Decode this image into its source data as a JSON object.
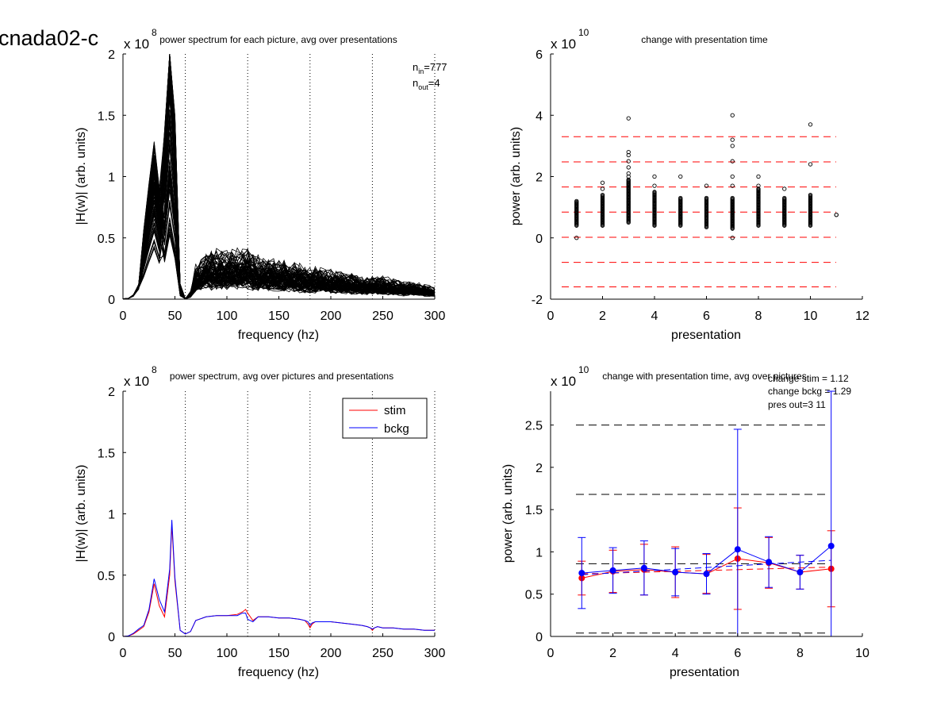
{
  "figure_title": "cnada02-c",
  "chart_data": [
    {
      "id": "tl",
      "type": "line",
      "title": "power spectrum for each picture, avg over presentations",
      "xlabel": "frequency (hz)",
      "ylabel": "|H(w)| (arb. units)",
      "exponent": "x 10",
      "exponent_power": "8",
      "xlim": [
        0,
        300
      ],
      "ylim": [
        0,
        2
      ],
      "xticks": [
        0,
        50,
        100,
        150,
        200,
        250,
        300
      ],
      "yticks": [
        0,
        0.5,
        1,
        1.5,
        2
      ],
      "harmonic_lines": [
        60,
        120,
        180,
        240,
        300
      ],
      "annotations": [
        {
          "main": "n",
          "sub": "in",
          "rest": "=777"
        },
        {
          "main": "n",
          "sub": "out",
          "rest": "=4"
        }
      ],
      "series_count": 777,
      "series_drawn": 90,
      "mean_profile": {
        "x": [
          0,
          5,
          10,
          15,
          20,
          25,
          30,
          35,
          40,
          45,
          48,
          52,
          55,
          58,
          60,
          65,
          70,
          80,
          90,
          100,
          110,
          120,
          130,
          140,
          150,
          160,
          170,
          180,
          190,
          200,
          210,
          220,
          230,
          240,
          250,
          260,
          270,
          280,
          290,
          300
        ],
        "y": [
          0.003,
          0.005,
          0.03,
          0.1,
          0.3,
          0.5,
          0.68,
          0.48,
          0.55,
          0.95,
          0.9,
          0.3,
          0.05,
          0.01,
          0.003,
          0.03,
          0.12,
          0.16,
          0.17,
          0.17,
          0.17,
          0.18,
          0.15,
          0.14,
          0.14,
          0.13,
          0.12,
          0.11,
          0.11,
          0.1,
          0.1,
          0.09,
          0.08,
          0.08,
          0.08,
          0.07,
          0.06,
          0.06,
          0.05,
          0.04
        ]
      },
      "curve_color": "#000000"
    },
    {
      "id": "tr",
      "type": "scatter",
      "title": "change with presentation time",
      "xlabel": "presentation",
      "ylabel": "power (arb. units)",
      "exponent": "x 10",
      "exponent_power": "10",
      "xlim": [
        0,
        12
      ],
      "ylim": [
        -2,
        6
      ],
      "xticks": [
        0,
        2,
        4,
        6,
        8,
        10,
        12
      ],
      "yticks": [
        -2,
        0,
        2,
        4,
        6
      ],
      "hlines": [
        -1.6,
        -0.8,
        0.02,
        0.84,
        1.66,
        2.48,
        3.3
      ],
      "hline_color": "#ff0000",
      "columns": [
        {
          "x": 1,
          "lo": 0.4,
          "hi": 1.2,
          "outliers": [
            0.0
          ]
        },
        {
          "x": 2,
          "lo": 0.4,
          "hi": 1.4,
          "outliers": [
            1.6,
            1.8
          ]
        },
        {
          "x": 3,
          "lo": 0.5,
          "hi": 1.9,
          "outliers": [
            2.0,
            2.1,
            2.3,
            2.5,
            2.7,
            2.8,
            3.9
          ]
        },
        {
          "x": 4,
          "lo": 0.4,
          "hi": 1.5,
          "outliers": [
            1.7,
            2.0
          ]
        },
        {
          "x": 5,
          "lo": 0.4,
          "hi": 1.3,
          "outliers": [
            2.0
          ]
        },
        {
          "x": 6,
          "lo": 0.35,
          "hi": 1.3,
          "outliers": [
            1.7
          ]
        },
        {
          "x": 7,
          "lo": 0.3,
          "hi": 1.3,
          "outliers": [
            0.0,
            1.7,
            2.0,
            2.5,
            3.0,
            3.2,
            4.0
          ]
        },
        {
          "x": 8,
          "lo": 0.4,
          "hi": 1.6,
          "outliers": [
            1.7,
            2.0
          ]
        },
        {
          "x": 9,
          "lo": 0.4,
          "hi": 1.3,
          "outliers": [
            1.6
          ]
        },
        {
          "x": 10,
          "lo": 0.4,
          "hi": 1.4,
          "outliers": [
            2.4,
            3.7
          ]
        },
        {
          "x": 11,
          "lo": 0.75,
          "hi": 0.75,
          "outliers": []
        }
      ]
    },
    {
      "id": "bl",
      "type": "line",
      "title": "power spectrum, avg over pictures and presentations",
      "xlabel": "frequency (hz)",
      "ylabel": "|H(w)| (arb. units)",
      "exponent": "x 10",
      "exponent_power": "8",
      "xlim": [
        0,
        300
      ],
      "ylim": [
        0,
        2
      ],
      "xticks": [
        0,
        50,
        100,
        150,
        200,
        250,
        300
      ],
      "yticks": [
        0,
        0.5,
        1,
        1.5,
        2
      ],
      "harmonic_lines": [
        60,
        120,
        180,
        240,
        300
      ],
      "legend": {
        "position": "top-right"
      },
      "series": [
        {
          "name": "stim",
          "color": "#ff0000",
          "x": [
            0,
            5,
            10,
            15,
            20,
            25,
            30,
            35,
            40,
            45,
            47,
            50,
            55,
            60,
            65,
            70,
            80,
            90,
            100,
            110,
            115,
            118,
            120,
            125,
            130,
            140,
            150,
            160,
            170,
            175,
            178,
            180,
            182,
            185,
            190,
            200,
            210,
            220,
            230,
            235,
            238,
            240,
            242,
            245,
            250,
            260,
            270,
            280,
            290,
            300
          ],
          "y": [
            0.0,
            0.003,
            0.02,
            0.05,
            0.08,
            0.2,
            0.43,
            0.25,
            0.16,
            0.5,
            0.91,
            0.45,
            0.05,
            0.02,
            0.04,
            0.13,
            0.16,
            0.17,
            0.17,
            0.18,
            0.2,
            0.22,
            0.19,
            0.13,
            0.16,
            0.16,
            0.15,
            0.15,
            0.14,
            0.13,
            0.1,
            0.07,
            0.1,
            0.12,
            0.12,
            0.12,
            0.11,
            0.1,
            0.09,
            0.08,
            0.07,
            0.05,
            0.07,
            0.08,
            0.07,
            0.07,
            0.06,
            0.06,
            0.05,
            0.05
          ]
        },
        {
          "name": "bckg",
          "color": "#0000ff",
          "x": [
            0,
            5,
            10,
            15,
            20,
            25,
            30,
            35,
            40,
            45,
            47,
            50,
            55,
            60,
            65,
            70,
            80,
            90,
            100,
            110,
            115,
            118,
            120,
            125,
            130,
            140,
            150,
            160,
            170,
            175,
            178,
            180,
            182,
            185,
            190,
            200,
            210,
            220,
            230,
            235,
            238,
            240,
            242,
            245,
            250,
            260,
            270,
            280,
            290,
            300
          ],
          "y": [
            0.0,
            0.004,
            0.025,
            0.06,
            0.09,
            0.22,
            0.47,
            0.3,
            0.2,
            0.55,
            0.95,
            0.48,
            0.05,
            0.02,
            0.04,
            0.13,
            0.16,
            0.17,
            0.17,
            0.17,
            0.19,
            0.19,
            0.14,
            0.12,
            0.16,
            0.16,
            0.15,
            0.15,
            0.14,
            0.13,
            0.12,
            0.09,
            0.11,
            0.12,
            0.12,
            0.12,
            0.11,
            0.1,
            0.09,
            0.08,
            0.07,
            0.06,
            0.07,
            0.08,
            0.07,
            0.07,
            0.06,
            0.06,
            0.05,
            0.05
          ]
        }
      ]
    },
    {
      "id": "br",
      "type": "line",
      "title": "change with presentation time, avg over pictures",
      "xlabel": "presentation",
      "ylabel": "power (arb. units)",
      "exponent": "x 10",
      "exponent_power": "10",
      "xlim": [
        0,
        10
      ],
      "ylim": [
        0,
        2.9
      ],
      "xticks": [
        0,
        2,
        4,
        6,
        8,
        10
      ],
      "yticks": [
        0,
        0.5,
        1,
        1.5,
        2,
        2.5
      ],
      "annotations": [
        "change stim = 1.12",
        "change bckg = 1.29",
        "pres out=3 11"
      ],
      "hlines": [
        0.04,
        0.86,
        1.68,
        2.5
      ],
      "hline_color": "#000000",
      "series": [
        {
          "name": "stim",
          "color": "#ff0000",
          "x": [
            1,
            2,
            3,
            4,
            5,
            6,
            7,
            8,
            9
          ],
          "y": [
            0.69,
            0.77,
            0.79,
            0.76,
            0.74,
            0.92,
            0.87,
            0.76,
            0.8
          ],
          "err": [
            0.2,
            0.25,
            0.3,
            0.3,
            0.23,
            0.6,
            0.3,
            0.2,
            0.45
          ],
          "fit": [
            0.74,
            0.82
          ]
        },
        {
          "name": "bckg",
          "color": "#0000ff",
          "x": [
            1,
            2,
            3,
            4,
            5,
            6,
            7,
            8,
            9
          ],
          "y": [
            0.75,
            0.78,
            0.81,
            0.76,
            0.74,
            1.03,
            0.88,
            0.76,
            1.07
          ],
          "err": [
            0.42,
            0.27,
            0.32,
            0.28,
            0.24,
            1.42,
            0.3,
            0.2,
            1.9
          ],
          "fit": [
            0.73,
            0.9
          ]
        }
      ]
    }
  ]
}
